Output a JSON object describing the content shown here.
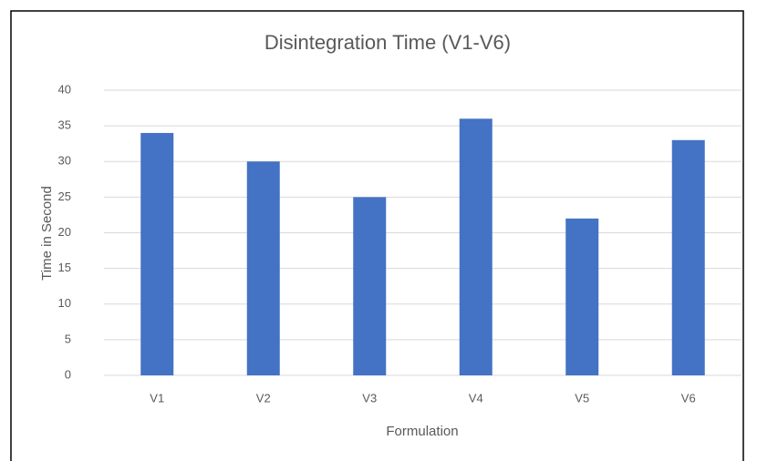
{
  "chart_data": {
    "type": "bar",
    "title": "Disintegration Time (V1-V6)",
    "x_label": "Formulation",
    "y_label": "Time in Second",
    "categories": [
      "V1",
      "V2",
      "V3",
      "V4",
      "V5",
      "V6"
    ],
    "values": [
      34,
      30,
      25,
      36,
      22,
      33
    ],
    "color": "#4472c4",
    "ylim": [
      0,
      40
    ],
    "yticks": [
      0,
      5,
      10,
      15,
      20,
      25,
      30,
      35,
      40
    ],
    "grid": true
  }
}
